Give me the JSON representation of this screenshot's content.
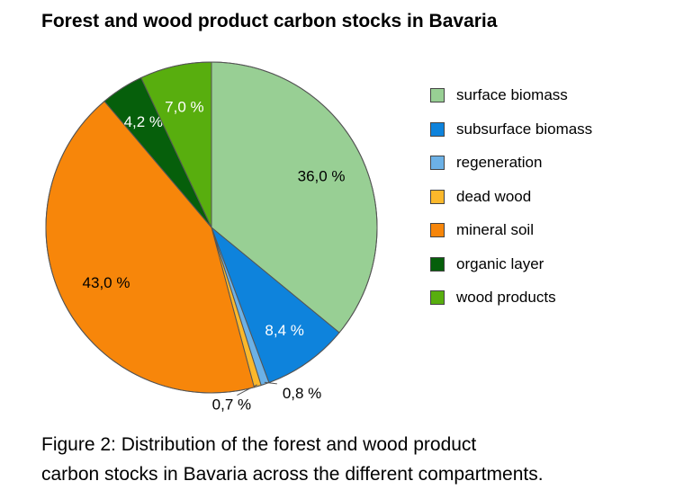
{
  "chart_data": {
    "type": "pie",
    "title": "Forest and wood product carbon stocks in Bavaria",
    "slices": [
      {
        "label": "surface biomass",
        "value": 36.0,
        "display": "36,0 %",
        "color": "#98cf94"
      },
      {
        "label": "subsurface biomass",
        "value": 8.4,
        "display": "8,4 %",
        "color": "#0e83dc"
      },
      {
        "label": "regeneration",
        "value": 0.8,
        "display": "0,8 %",
        "color": "#6cb1e6"
      },
      {
        "label": "dead wood",
        "value": 0.7,
        "display": "0,7 %",
        "color": "#fbb82b"
      },
      {
        "label": "mineral soil",
        "value": 43.0,
        "display": "43,0 %",
        "color": "#f7860a"
      },
      {
        "label": "organic layer",
        "value": 4.2,
        "display": "4,2 %",
        "color": "#065f0b"
      },
      {
        "label": "wood products",
        "value": 7.0,
        "display": "7,0 %",
        "color": "#58ae0e"
      }
    ],
    "legend_position": "right"
  },
  "caption": {
    "line1": "Figure 2: Distribution of the forest and wood product",
    "line2": "carbon stocks in Bavaria across the different compartments."
  }
}
